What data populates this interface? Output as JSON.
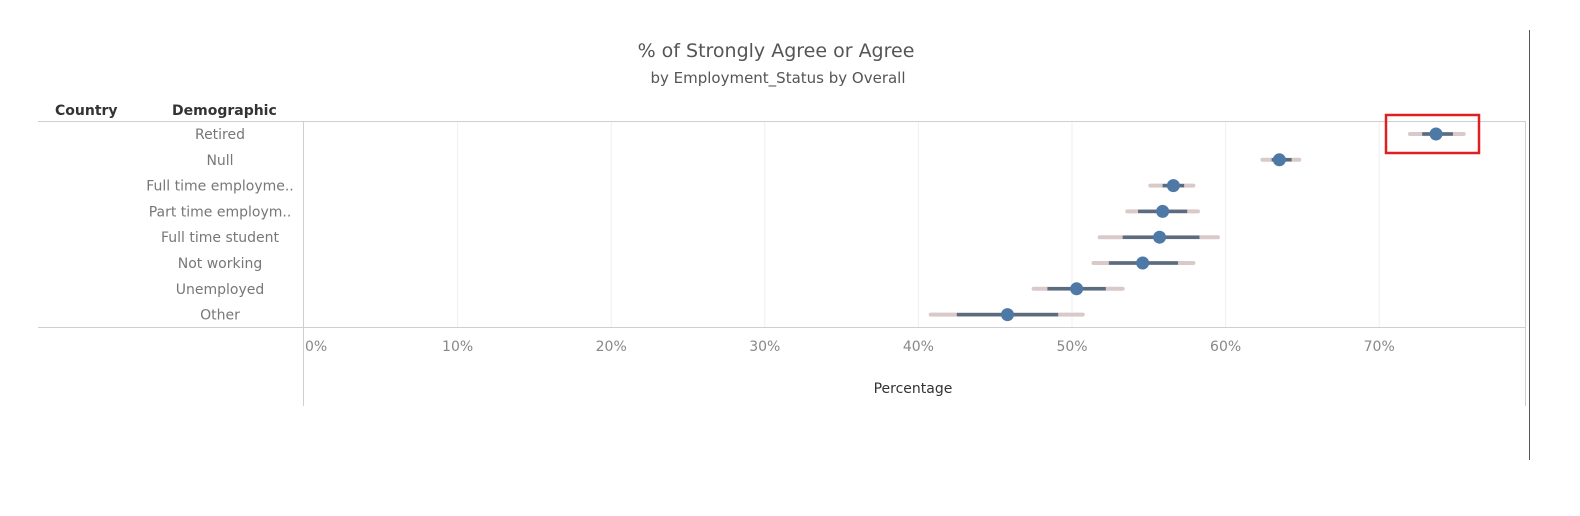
{
  "header": {
    "title": "% of Strongly Agree or Agree",
    "subtitle": "by Employment_Status by Overall",
    "col_country": "Country",
    "col_demographic": "Demographic"
  },
  "colors": {
    "point": "#4e79a7",
    "inner_interval": "#5b6b80",
    "outer_interval": "#d9c9c9",
    "highlight_box": "#e02020"
  },
  "chart_data": {
    "type": "scatter",
    "title": "% of Strongly Agree or Agree",
    "subtitle": "by Employment_Status by Overall",
    "xlabel": "Percentage",
    "ylabel": "Demographic",
    "xlim": [
      0,
      80
    ],
    "x_ticks": [
      "0%",
      "10%",
      "20%",
      "30%",
      "40%",
      "50%",
      "60%",
      "70%"
    ],
    "grid": true,
    "categories": [
      "Retired",
      "Null",
      "Full time employme..",
      "Part time employm..",
      "Full time student",
      "Not working",
      "Unemployed",
      "Other"
    ],
    "values": [
      73.7,
      63.5,
      56.6,
      55.9,
      55.7,
      54.6,
      50.3,
      45.8
    ],
    "inner_low": [
      72.8,
      63.0,
      55.9,
      54.3,
      53.3,
      52.4,
      48.4,
      42.5
    ],
    "inner_high": [
      74.8,
      64.3,
      57.3,
      57.5,
      58.3,
      56.9,
      52.2,
      49.1
    ],
    "outer_low": [
      72.0,
      62.4,
      55.1,
      53.6,
      51.8,
      51.4,
      47.5,
      40.8
    ],
    "outer_high": [
      75.5,
      64.8,
      57.9,
      58.2,
      59.5,
      57.9,
      53.3,
      50.7
    ],
    "highlighted_category": "Retired"
  }
}
